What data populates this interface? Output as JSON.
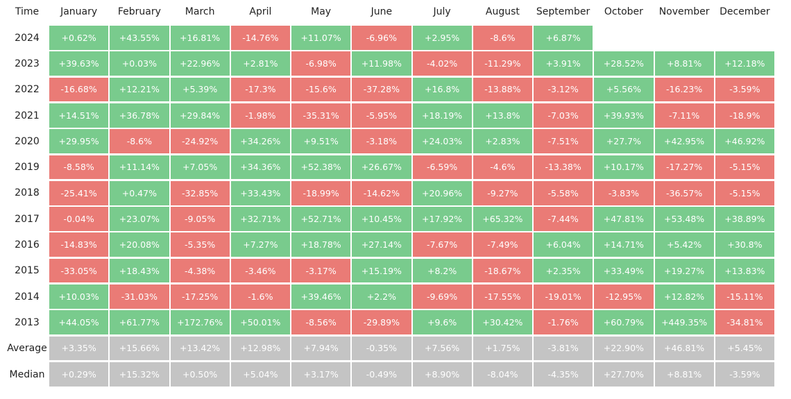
{
  "table": {
    "header": [
      "Time",
      "January",
      "February",
      "March",
      "April",
      "May",
      "June",
      "July",
      "August",
      "September",
      "October",
      "November",
      "December"
    ],
    "rows": [
      [
        "2024",
        "+0.62%",
        "+43.55%",
        "+16.81%",
        "-14.76%",
        "+11.07%",
        "-6.96%",
        "+2.95%",
        "-8.6%",
        "+6.87%"
      ],
      [
        "2023",
        "+39.63%",
        "+0.03%",
        "+22.96%",
        "+2.81%",
        "-6.98%",
        "+11.98%",
        "-4.02%",
        "-11.29%",
        "+3.91%",
        "+28.52%",
        "+8.81%",
        "+12.18%"
      ],
      [
        "2022",
        "-16.68%",
        "+12.21%",
        "+5.39%",
        "-17.3%",
        "-15.6%",
        "-37.28%",
        "+16.8%",
        "-13.88%",
        "-3.12%",
        "+5.56%",
        "-16.23%",
        "-3.59%"
      ],
      [
        "2021",
        "+14.51%",
        "+36.78%",
        "+29.84%",
        "-1.98%",
        "-35.31%",
        "-5.95%",
        "+18.19%",
        "+13.8%",
        "-7.03%",
        "+39.93%",
        "-7.11%",
        "-18.9%"
      ],
      [
        "2020",
        "+29.95%",
        "-8.6%",
        "-24.92%",
        "+34.26%",
        "+9.51%",
        "-3.18%",
        "+24.03%",
        "+2.83%",
        "-7.51%",
        "+27.7%",
        "+42.95%",
        "+46.92%"
      ],
      [
        "2019",
        "-8.58%",
        "+11.14%",
        "+7.05%",
        "+34.36%",
        "+52.38%",
        "+26.67%",
        "-6.59%",
        "-4.6%",
        "-13.38%",
        "+10.17%",
        "-17.27%",
        "-5.15%"
      ],
      [
        "2018",
        "-25.41%",
        "+0.47%",
        "-32.85%",
        "+33.43%",
        "-18.99%",
        "-14.62%",
        "+20.96%",
        "-9.27%",
        "-5.58%",
        "-3.83%",
        "-36.57%",
        "-5.15%"
      ],
      [
        "2017",
        "-0.04%",
        "+23.07%",
        "-9.05%",
        "+32.71%",
        "+52.71%",
        "+10.45%",
        "+17.92%",
        "+65.32%",
        "-7.44%",
        "+47.81%",
        "+53.48%",
        "+38.89%"
      ],
      [
        "2016",
        "-14.83%",
        "+20.08%",
        "-5.35%",
        "+7.27%",
        "+18.78%",
        "+27.14%",
        "-7.67%",
        "-7.49%",
        "+6.04%",
        "+14.71%",
        "+5.42%",
        "+30.8%"
      ],
      [
        "2015",
        "-33.05%",
        "+18.43%",
        "-4.38%",
        "-3.46%",
        "-3.17%",
        "+15.19%",
        "+8.2%",
        "-18.67%",
        "+2.35%",
        "+33.49%",
        "+19.27%",
        "+13.83%"
      ],
      [
        "2014",
        "+10.03%",
        "-31.03%",
        "-17.25%",
        "-1.6%",
        "+39.46%",
        "+2.2%",
        "-9.69%",
        "-17.55%",
        "-19.01%",
        "-12.95%",
        "+12.82%",
        "-15.11%"
      ],
      [
        "2013",
        "+44.05%",
        "+61.77%",
        "+172.76%",
        "+50.01%",
        "-8.56%",
        "-29.89%",
        "+9.6%",
        "+30.42%",
        "-1.76%",
        "+60.79%",
        "+449.35%",
        "-34.81%"
      ]
    ],
    "summary_rows": [
      [
        "Average",
        "+3.35%",
        "+15.66%",
        "+13.42%",
        "+12.98%",
        "+7.94%",
        "-0.35%",
        "+7.56%",
        "+1.75%",
        "-3.81%",
        "+22.90%",
        "+46.81%",
        "+5.45%"
      ],
      [
        "Median",
        "+0.29%",
        "+15.32%",
        "+0.50%",
        "+5.04%",
        "+3.17%",
        "-0.49%",
        "+8.90%",
        "-8.04%",
        "-4.35%",
        "+27.70%",
        "+8.81%",
        "-3.59%"
      ]
    ]
  }
}
